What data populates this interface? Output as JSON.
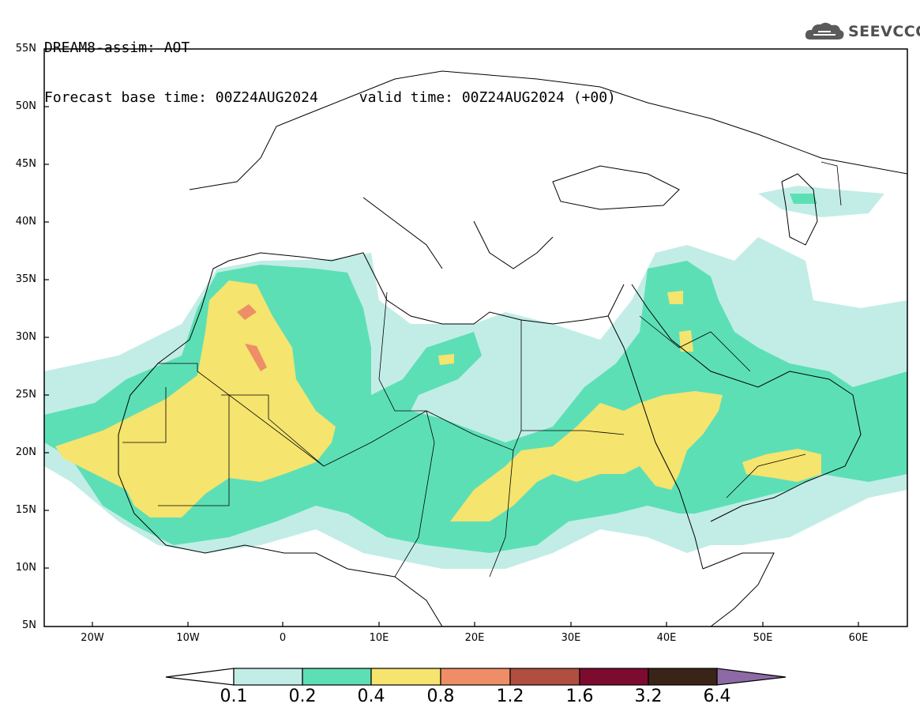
{
  "header": {
    "title": "DREAM8-assim: AOT",
    "base_time": "Forecast base time: 00Z24AUG2024",
    "valid_time": "valid time: 00Z24AUG2024 (+00)"
  },
  "logo": {
    "text": "SEEVCCC",
    "icon": "cloud-icon"
  },
  "map": {
    "region": "North Africa, Europe and Middle East",
    "lat_range": [
      5,
      55
    ],
    "lon_range": [
      -25,
      65
    ],
    "lat_labels": [
      "55N",
      "50N",
      "45N",
      "40N",
      "35N",
      "30N",
      "25N",
      "20N",
      "15N",
      "10N",
      "5N"
    ],
    "lon_labels": [
      "20W",
      "10W",
      "0",
      "10E",
      "20E",
      "30E",
      "40E",
      "50E",
      "60E"
    ]
  },
  "colorbar": {
    "labels": [
      "0.1",
      "0.2",
      "0.4",
      "0.8",
      "1.2",
      "1.6",
      "3.2",
      "6.4"
    ],
    "colors": [
      "#ffffff",
      "#c2ede6",
      "#5ddfb6",
      "#f5e46e",
      "#ee8e66",
      "#b04e40",
      "#7d0b30",
      "#3a2418",
      "#8d6aa6"
    ]
  }
}
